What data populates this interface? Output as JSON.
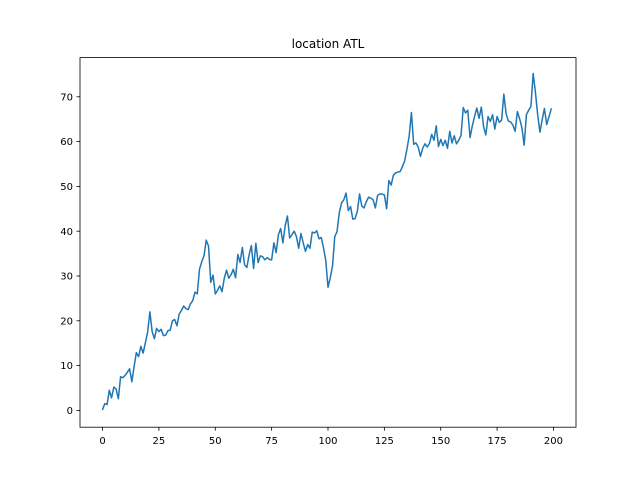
{
  "chart_data": {
    "type": "line",
    "title": "location ATL",
    "xlabel": "",
    "ylabel": "",
    "xlim": [
      -10,
      210
    ],
    "ylim": [
      -3.75,
      78.75
    ],
    "grid": false,
    "x_ticks": [
      0,
      25,
      50,
      75,
      100,
      125,
      150,
      175,
      200
    ],
    "y_ticks": [
      0,
      10,
      20,
      30,
      40,
      50,
      60,
      70
    ],
    "line_color": "#1f77b4",
    "series": [
      {
        "x_start": 0,
        "x_step": 1,
        "values": [
          0.2,
          1.5,
          1.3,
          4.5,
          2.8,
          5.2,
          4.8,
          2.6,
          7.5,
          7.3,
          7.8,
          8.5,
          9.3,
          6.4,
          9.8,
          12.9,
          12.0,
          14.3,
          12.8,
          15.1,
          17.5,
          22.0,
          17.6,
          16.0,
          18.3,
          17.6,
          18.1,
          16.7,
          16.8,
          17.8,
          17.9,
          20.0,
          20.3,
          18.9,
          21.5,
          22.3,
          23.3,
          22.7,
          22.5,
          23.8,
          24.5,
          26.4,
          26.0,
          31.5,
          33.2,
          34.5,
          38.0,
          36.7,
          28.6,
          30.2,
          26.0,
          26.8,
          27.8,
          26.5,
          29.5,
          31.3,
          29.5,
          30.3,
          31.5,
          29.6,
          34.8,
          33.0,
          36.4,
          32.5,
          31.9,
          34.7,
          36.8,
          31.7,
          37.3,
          33.0,
          34.5,
          34.3,
          33.6,
          34.1,
          33.7,
          33.6,
          37.4,
          35.2,
          39.2,
          40.6,
          37.4,
          41.2,
          43.4,
          38.5,
          39.2,
          40.0,
          38.8,
          36.2,
          39.5,
          37.4,
          35.5,
          37.0,
          36.2,
          39.8,
          39.6,
          40.1,
          38.3,
          38.6,
          36.3,
          33.5,
          27.5,
          29.6,
          32.2,
          38.8,
          39.9,
          44.1,
          46.3,
          47.0,
          48.5,
          44.6,
          45.5,
          42.7,
          42.8,
          44.4,
          48.3,
          45.6,
          45.2,
          46.6,
          47.6,
          47.4,
          47.0,
          45.2,
          48.0,
          48.3,
          48.3,
          48.1,
          45.0,
          51.3,
          50.3,
          52.5,
          53.0,
          53.2,
          53.3,
          54.4,
          55.7,
          58.3,
          61.2,
          66.5,
          59.4,
          59.7,
          58.8,
          56.7,
          58.5,
          59.5,
          58.8,
          59.6,
          61.6,
          60.3,
          63.5,
          58.9,
          60.5,
          59.1,
          60.3,
          58.5,
          62.3,
          59.7,
          61.3,
          59.5,
          60.3,
          61.4,
          67.6,
          66.4,
          67.0,
          60.9,
          63.5,
          65.6,
          67.5,
          65.2,
          67.7,
          63.4,
          61.5,
          65.6,
          64.5,
          66.0,
          62.8,
          65.6,
          64.3,
          64.8,
          70.6,
          66.2,
          64.6,
          64.4,
          63.7,
          62.3,
          66.7,
          65.1,
          63.1,
          59.2,
          66.0,
          67.0,
          67.8,
          75.2,
          71.0,
          66.0,
          62.1,
          64.9,
          67.4,
          63.8,
          65.5,
          67.3
        ]
      }
    ]
  }
}
